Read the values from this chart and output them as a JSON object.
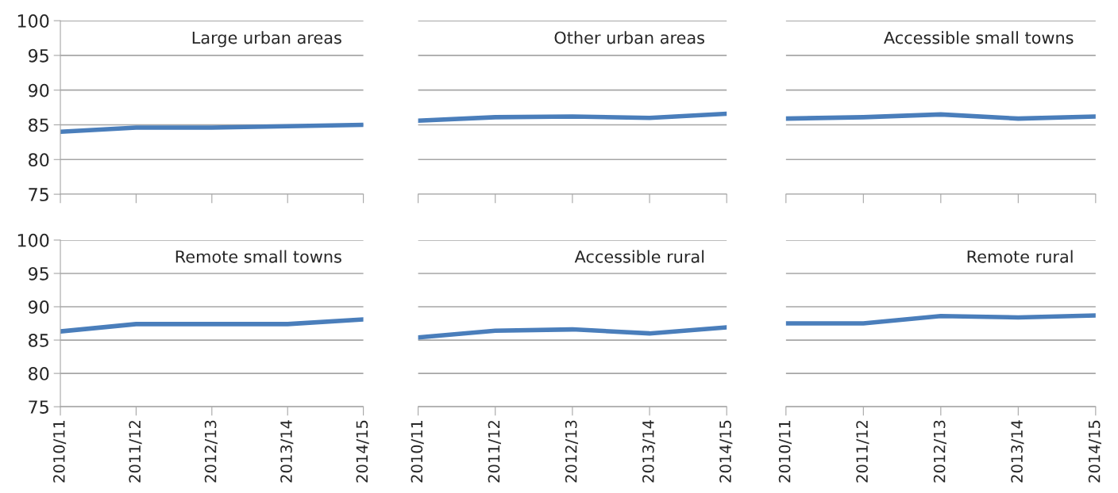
{
  "chart_data": [
    {
      "type": "line",
      "title": "Large urban areas",
      "categories": [
        "2010/11",
        "2011/12",
        "2012/13",
        "2013/14",
        "2014/15"
      ],
      "series": [
        {
          "color": "#4a7ebb",
          "values": [
            84.0,
            84.6,
            84.6,
            84.8,
            85.0
          ]
        }
      ],
      "ylim": [
        75,
        100
      ],
      "yticks": [
        75,
        80,
        85,
        90,
        95,
        100
      ],
      "grid": "y",
      "tick_labels": "y",
      "legend": false
    },
    {
      "type": "line",
      "title": "Other urban areas",
      "categories": [
        "2010/11",
        "2011/12",
        "2012/13",
        "2013/14",
        "2014/15"
      ],
      "series": [
        {
          "color": "#4a7ebb",
          "values": [
            85.6,
            86.1,
            86.2,
            86.0,
            86.6
          ]
        }
      ],
      "ylim": [
        75,
        100
      ],
      "yticks": [
        75,
        80,
        85,
        90,
        95,
        100
      ],
      "grid": "y",
      "tick_labels": false,
      "legend": false
    },
    {
      "type": "line",
      "title": "Accessible small towns",
      "categories": [
        "2010/11",
        "2011/12",
        "2012/13",
        "2013/14",
        "2014/15"
      ],
      "series": [
        {
          "color": "#4a7ebb",
          "values": [
            85.9,
            86.1,
            86.5,
            85.9,
            86.2
          ]
        }
      ],
      "ylim": [
        75,
        100
      ],
      "yticks": [
        75,
        80,
        85,
        90,
        95,
        100
      ],
      "grid": "y",
      "tick_labels": false,
      "legend": false
    },
    {
      "type": "line",
      "title": "Remote small towns",
      "categories": [
        "2010/11",
        "2011/12",
        "2012/13",
        "2013/14",
        "2014/15"
      ],
      "series": [
        {
          "color": "#4a7ebb",
          "values": [
            86.3,
            87.4,
            87.4,
            87.4,
            88.1
          ]
        }
      ],
      "ylim": [
        75,
        100
      ],
      "yticks": [
        75,
        80,
        85,
        90,
        95,
        100
      ],
      "grid": "y",
      "legend": false
    },
    {
      "type": "line",
      "title": "Accessible rural",
      "categories": [
        "2010/11",
        "2011/12",
        "2012/13",
        "2013/14",
        "2014/15"
      ],
      "series": [
        {
          "color": "#4a7ebb",
          "values": [
            85.4,
            86.4,
            86.6,
            86.0,
            86.9
          ]
        }
      ],
      "ylim": [
        75,
        100
      ],
      "yticks": [
        75,
        80,
        85,
        90,
        95,
        100
      ],
      "grid": "y",
      "tick_labels": "x",
      "legend": false
    },
    {
      "type": "line",
      "title": "Remote rural",
      "categories": [
        "2010/11",
        "2011/12",
        "2012/13",
        "2013/14",
        "2014/15"
      ],
      "series": [
        {
          "color": "#4a7ebb",
          "values": [
            87.5,
            87.5,
            88.6,
            88.4,
            88.7
          ]
        }
      ],
      "ylim": [
        75,
        100
      ],
      "yticks": [
        75,
        80,
        85,
        90,
        95,
        100
      ],
      "grid": "y",
      "tick_labels": "x",
      "legend": false
    }
  ]
}
